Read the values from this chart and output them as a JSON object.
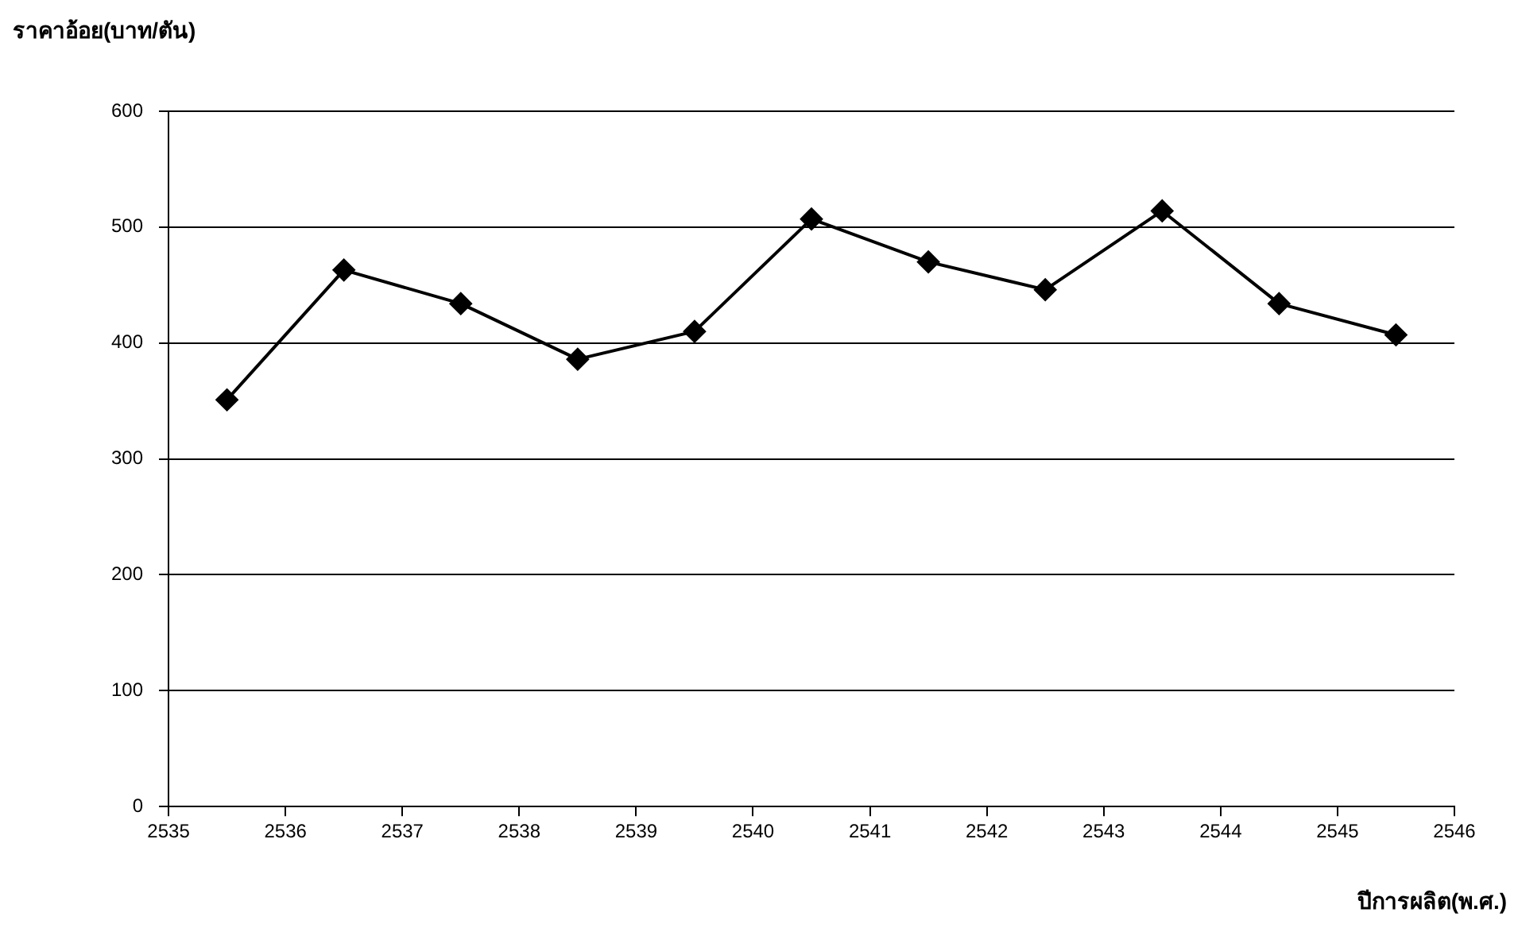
{
  "chart_data": {
    "type": "line",
    "ylabel": "ราคาอ้อย(บาท/ตัน)",
    "xlabel": "ปีการผลิต(พ.ศ.)",
    "x": [
      2535.5,
      2536.5,
      2537.5,
      2538.5,
      2539.5,
      2540.5,
      2541.5,
      2542.5,
      2543.5,
      2544.5,
      2545.5
    ],
    "series": [
      {
        "color": "#000000",
        "values": [
          351,
          463,
          434,
          386,
          410,
          507,
          470,
          446,
          514,
          434,
          407
        ]
      }
    ],
    "xlim": [
      2535,
      2546
    ],
    "xticks": [
      2535,
      2536,
      2537,
      2538,
      2539,
      2540,
      2541,
      2542,
      2543,
      2544,
      2545,
      2546
    ],
    "ylim": [
      0,
      600
    ],
    "yticks": [
      0,
      100,
      200,
      300,
      400,
      500,
      600
    ],
    "grid": "y",
    "legend": false,
    "marker": "diamond",
    "line_style": "solid"
  }
}
